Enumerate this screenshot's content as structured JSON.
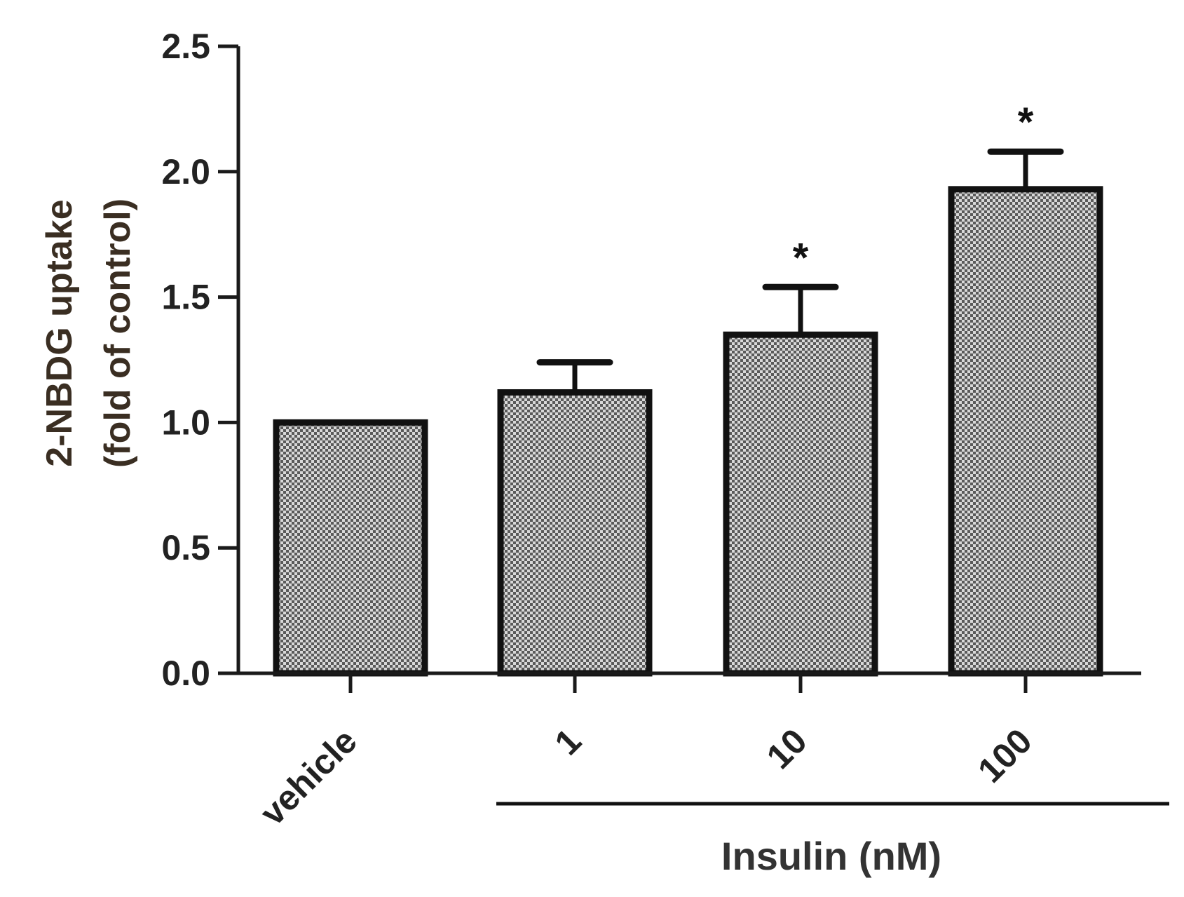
{
  "chart_data": {
    "type": "bar",
    "categories": [
      "vehicle",
      "1",
      "10",
      "100"
    ],
    "values": [
      1.0,
      1.12,
      1.35,
      1.93
    ],
    "errors": [
      0.0,
      0.12,
      0.19,
      0.15
    ],
    "significance": [
      "",
      "",
      "*",
      "*"
    ],
    "ylabel_line1": "2-NBDG uptake",
    "ylabel_line2": "(fold of control)",
    "xlabel": "Insulin (nM)",
    "ylim": [
      0,
      2.5
    ],
    "yticks": [
      "0.0",
      "0.5",
      "1.0",
      "1.5",
      "2.0",
      "2.5"
    ],
    "grid": false,
    "colors": {
      "bar_fill_dark": "#5a5a5a",
      "bar_fill_light": "#d8d8d8",
      "axis": "#1a1a1a"
    }
  }
}
